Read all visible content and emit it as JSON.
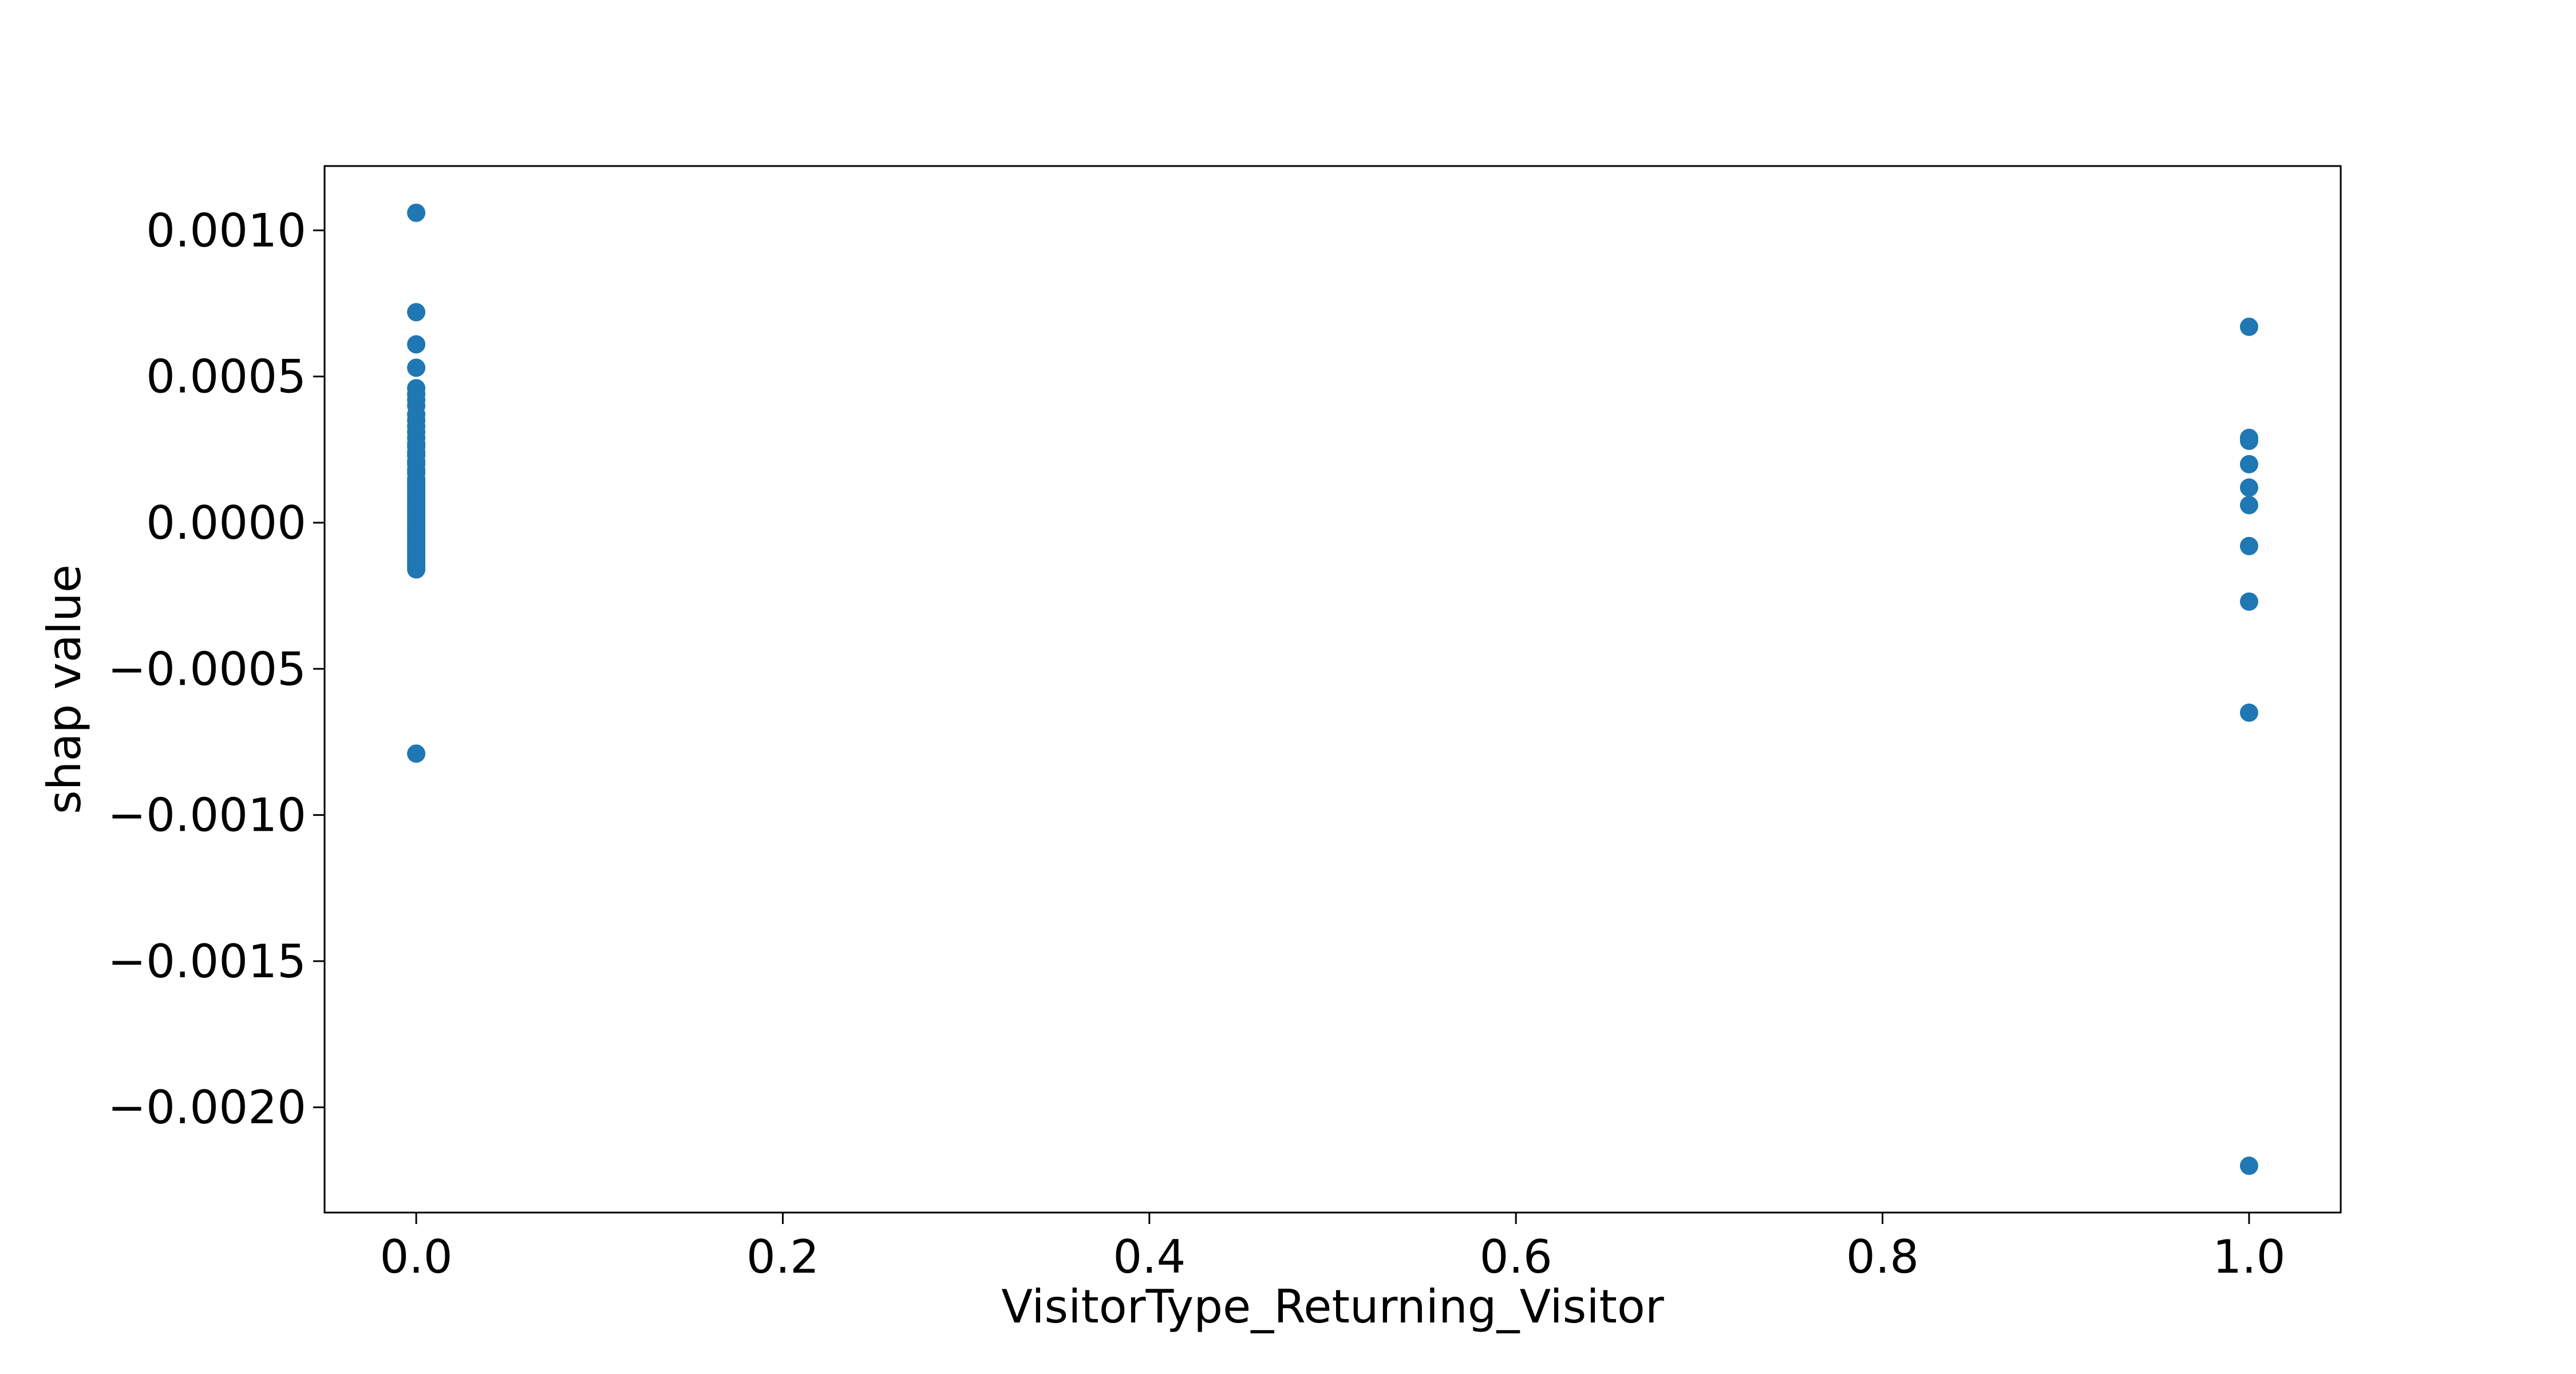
{
  "chart_data": {
    "type": "scatter",
    "title": "",
    "xlabel": "VisitorType_Returning_Visitor",
    "ylabel": "shap value",
    "xlim": [
      -0.05,
      1.05
    ],
    "ylim": [
      -0.00236,
      0.00122
    ],
    "grid": false,
    "marker_color": "#1f77b4",
    "x_ticks": [
      0.0,
      0.2,
      0.4,
      0.6,
      0.8,
      1.0
    ],
    "x_tick_labels": [
      "0.0",
      "0.2",
      "0.4",
      "0.6",
      "0.8",
      "1.0"
    ],
    "y_ticks": [
      0.001,
      0.0005,
      0.0,
      -0.0005,
      -0.001,
      -0.0015,
      -0.002
    ],
    "y_tick_labels": [
      "0.0010",
      "0.0005",
      "0.0000",
      "−0.0005",
      "−0.0010",
      "−0.0015",
      "−0.0020"
    ],
    "series": [
      {
        "x": [
          0,
          0,
          0,
          0,
          0,
          0,
          0,
          0,
          0,
          0,
          0,
          0,
          0,
          0,
          0,
          0,
          0,
          0,
          0,
          0,
          0,
          0,
          0,
          0,
          0,
          0,
          0,
          0,
          0,
          0,
          0,
          0,
          0,
          0,
          0,
          0,
          0,
          0,
          0,
          0,
          0,
          0,
          0,
          0,
          0,
          0,
          0,
          0,
          0,
          0,
          0,
          0,
          0,
          0
        ],
        "y": [
          0.00106,
          0.00072,
          0.00061,
          0.00053,
          0.00046,
          0.00044,
          0.00042,
          0.0004,
          0.00037,
          0.00035,
          0.00033,
          0.00031,
          0.00029,
          0.00027,
          0.00026,
          0.00024,
          0.00023,
          0.00021,
          0.0002,
          0.00018,
          0.00017,
          0.00015,
          0.00014,
          0.00013,
          0.00012,
          0.00011,
          0.0001,
          9e-05,
          8e-05,
          7e-05,
          6e-05,
          5e-05,
          4e-05,
          3e-05,
          2e-05,
          1e-05,
          0.0,
          -1e-05,
          -2e-05,
          -3e-05,
          -4e-05,
          -5e-05,
          -6e-05,
          -7e-05,
          -8e-05,
          -9e-05,
          -0.0001,
          -0.00011,
          -0.00012,
          -0.00013,
          -0.00014,
          -0.00015,
          -0.00016,
          -0.00079
        ]
      },
      {
        "x": [
          1,
          1,
          1,
          1,
          1,
          1,
          1,
          1,
          1,
          1
        ],
        "y": [
          0.00067,
          0.00029,
          0.00028,
          0.0002,
          0.00012,
          6e-05,
          -8e-05,
          -0.00027,
          -0.00065,
          -0.0022
        ]
      }
    ]
  }
}
